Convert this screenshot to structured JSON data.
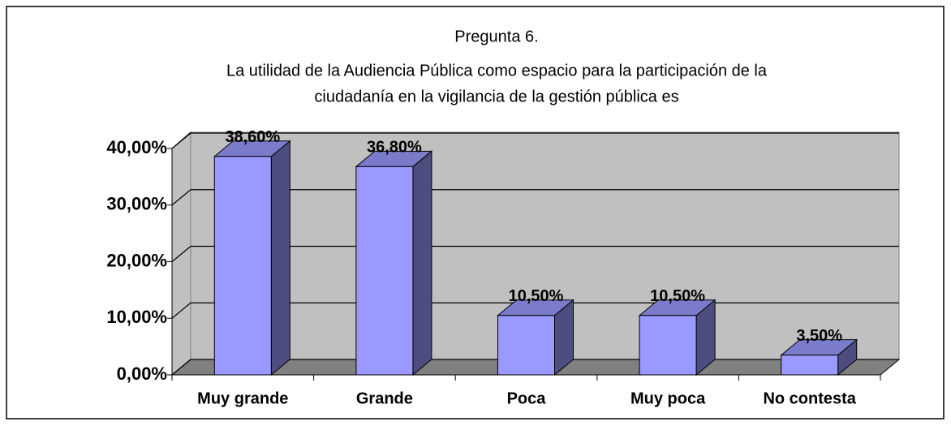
{
  "chart_data": {
    "type": "bar3d",
    "title": "Pregunta 6.",
    "subtitle": [
      "La utilidad de la Audiencia Pública como espacio para la participación de la",
      "ciudadanía en la vigilancia de la gestión pública es"
    ],
    "categories": [
      "Muy grande",
      "Grande",
      "Poca",
      "Muy poca",
      "No contesta"
    ],
    "values": [
      38.6,
      36.8,
      10.5,
      10.5,
      3.5
    ],
    "value_labels": [
      "38,60%",
      "36,80%",
      "10,50%",
      "10,50%",
      "3,50%"
    ],
    "color": "#9999ff",
    "ylim": [
      0,
      40
    ],
    "yticks": [
      {
        "value": 0,
        "label": "0,00%"
      },
      {
        "value": 10,
        "label": "10,00%"
      },
      {
        "value": 20,
        "label": "20,00%"
      },
      {
        "value": 30,
        "label": "30,00%"
      },
      {
        "value": 40,
        "label": "40,00%"
      }
    ],
    "grid": true
  }
}
